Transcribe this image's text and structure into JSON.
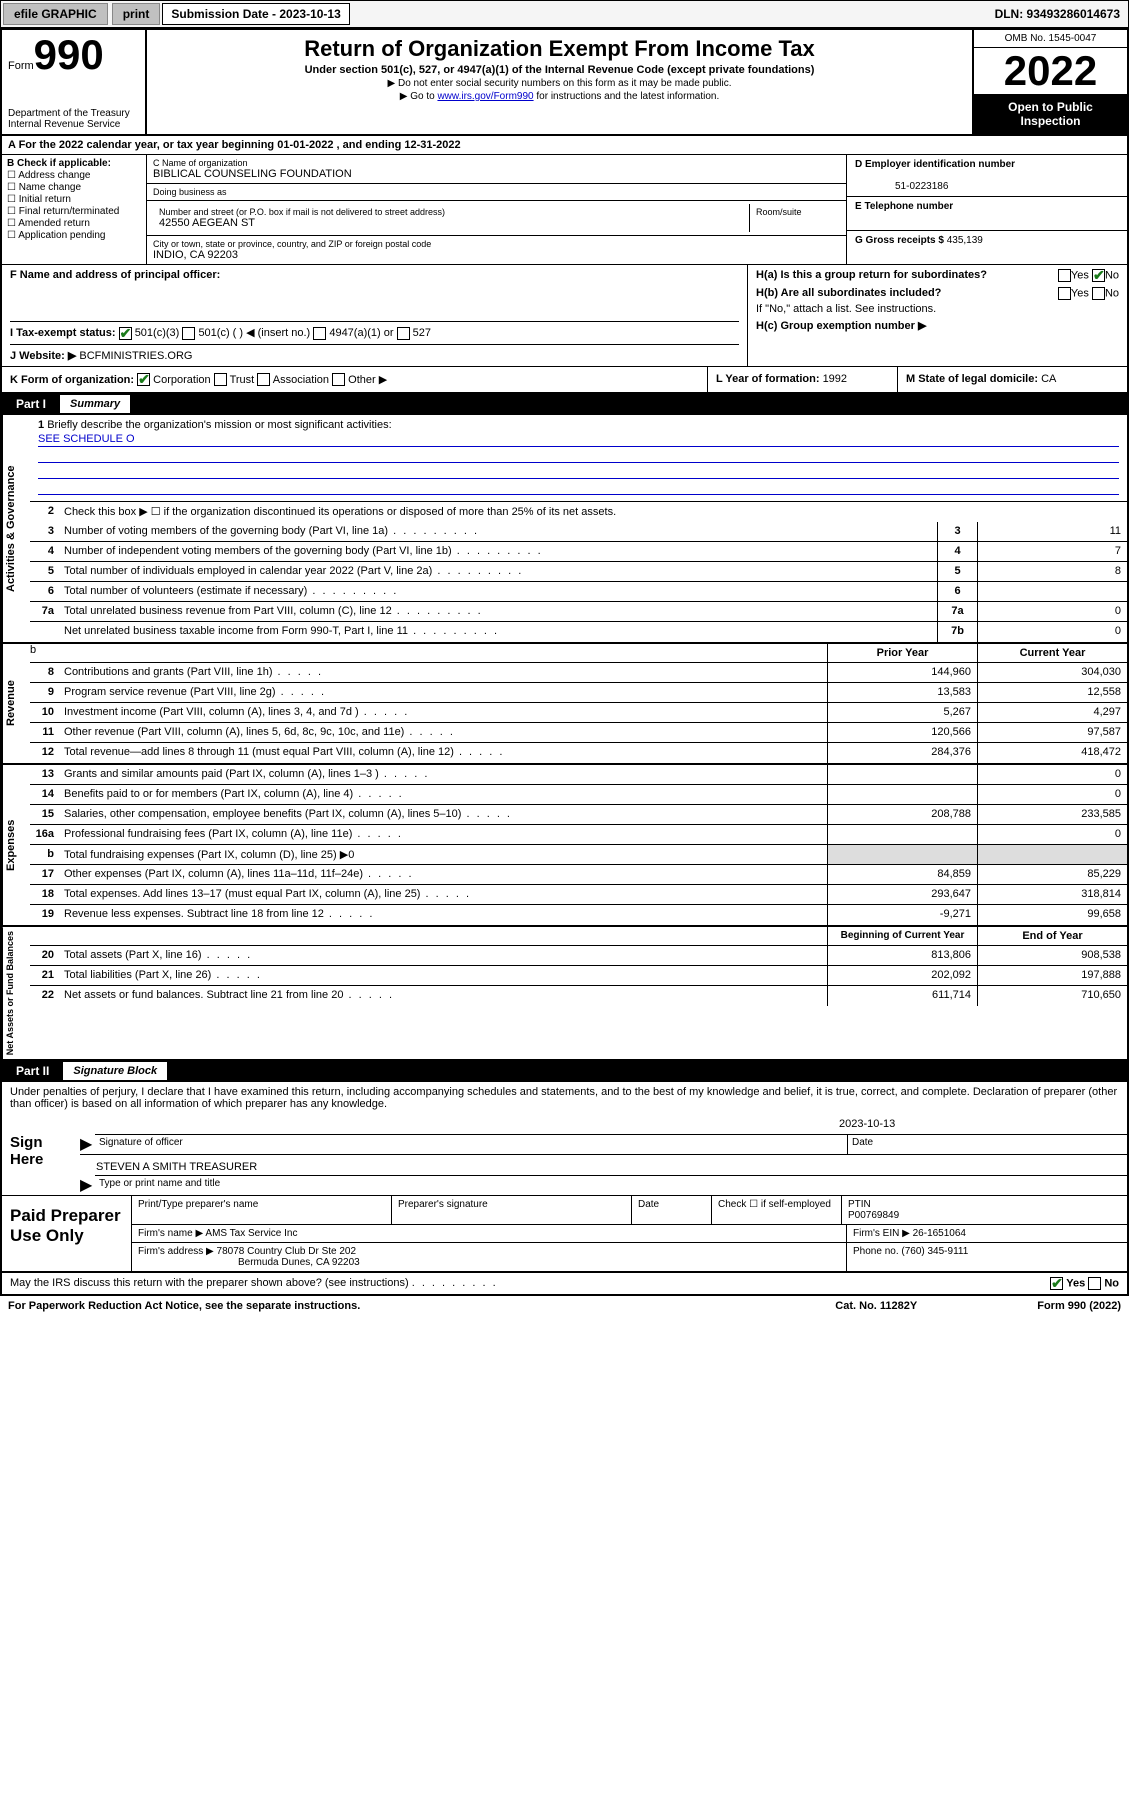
{
  "topbar": {
    "efile": "efile GRAPHIC",
    "print": "print",
    "sub_label": "Submission Date - 2023-10-13",
    "dln": "DLN: 93493286014673"
  },
  "header": {
    "form_prefix": "Form",
    "form_number": "990",
    "dept": "Department of the Treasury\nInternal Revenue Service",
    "title": "Return of Organization Exempt From Income Tax",
    "subtitle": "Under section 501(c), 527, or 4947(a)(1) of the Internal Revenue Code (except private foundations)",
    "note1": "▶ Do not enter social security numbers on this form as it may be made public.",
    "note2_pre": "▶ Go to ",
    "note2_link": "www.irs.gov/Form990",
    "note2_post": " for instructions and the latest information.",
    "omb": "OMB No. 1545-0047",
    "year": "2022",
    "open": "Open to Public Inspection"
  },
  "period": {
    "label_a": "A For the 2022 calendar year, or tax year beginning ",
    "begin": "01-01-2022",
    "mid": " , and ending ",
    "end": "12-31-2022"
  },
  "section_b": {
    "label": "B Check if applicable:",
    "opts": [
      "Address change",
      "Name change",
      "Initial return",
      "Final return/terminated",
      "Amended return",
      "Application pending"
    ]
  },
  "org": {
    "name_label": "C Name of organization",
    "name": "BIBLICAL COUNSELING FOUNDATION",
    "dba_label": "Doing business as",
    "dba": "",
    "street_label": "Number and street (or P.O. box if mail is not delivered to street address)",
    "room_label": "Room/suite",
    "street": "42550 AEGEAN ST",
    "city_label": "City or town, state or province, country, and ZIP or foreign postal code",
    "city": "INDIO, CA  92203"
  },
  "right_info": {
    "ein_label": "D Employer identification number",
    "ein": "51-0223186",
    "phone_label": "E Telephone number",
    "phone": "",
    "gross_label": "G Gross receipts $ ",
    "gross": "435,139"
  },
  "row_f": {
    "label": "F Name and address of principal officer:",
    "val": ""
  },
  "row_h": {
    "ha": "H(a) Is this a group return for subordinates?",
    "ha_yes": "Yes",
    "ha_no": "No",
    "hb": "H(b) Are all subordinates included?",
    "hb_yes": "Yes",
    "hb_no": "No",
    "hb_note": "If \"No,\" attach a list. See instructions.",
    "hc": "H(c) Group exemption number ▶"
  },
  "row_i": {
    "label": "I   Tax-exempt status:",
    "opt1": "501(c)(3)",
    "opt2": "501(c) (  ) ◀ (insert no.)",
    "opt3": "4947(a)(1) or",
    "opt4": "527"
  },
  "row_j": {
    "label": "J   Website: ▶",
    "val": "BCFMINISTRIES.ORG"
  },
  "row_k": {
    "label": "K Form of organization:",
    "corp": "Corporation",
    "trust": "Trust",
    "assoc": "Association",
    "other": "Other ▶",
    "l_label": "L Year of formation: ",
    "l_val": "1992",
    "m_label": "M State of legal domicile: ",
    "m_val": "CA"
  },
  "part1": {
    "label": "Part I",
    "title": "Summary"
  },
  "summary": {
    "line1": "Briefly describe the organization's mission or most significant activities:",
    "line1_val": "SEE SCHEDULE O",
    "line2": "Check this box ▶ ☐ if the organization discontinued its operations or disposed of more than 25% of its net assets.",
    "rows_gov": [
      {
        "n": "3",
        "d": "Number of voting members of the governing body (Part VI, line 1a)",
        "box": "3",
        "v": "11"
      },
      {
        "n": "4",
        "d": "Number of independent voting members of the governing body (Part VI, line 1b)",
        "box": "4",
        "v": "7"
      },
      {
        "n": "5",
        "d": "Total number of individuals employed in calendar year 2022 (Part V, line 2a)",
        "box": "5",
        "v": "8"
      },
      {
        "n": "6",
        "d": "Total number of volunteers (estimate if necessary)",
        "box": "6",
        "v": ""
      },
      {
        "n": "7a",
        "d": "Total unrelated business revenue from Part VIII, column (C), line 12",
        "box": "7a",
        "v": "0"
      },
      {
        "n": "",
        "d": "Net unrelated business taxable income from Form 990-T, Part I, line 11",
        "box": "7b",
        "v": "0"
      }
    ],
    "prior_label": "Prior Year",
    "current_label": "Current Year",
    "rows_rev": [
      {
        "n": "8",
        "d": "Contributions and grants (Part VIII, line 1h)",
        "p": "144,960",
        "c": "304,030"
      },
      {
        "n": "9",
        "d": "Program service revenue (Part VIII, line 2g)",
        "p": "13,583",
        "c": "12,558"
      },
      {
        "n": "10",
        "d": "Investment income (Part VIII, column (A), lines 3, 4, and 7d )",
        "p": "5,267",
        "c": "4,297"
      },
      {
        "n": "11",
        "d": "Other revenue (Part VIII, column (A), lines 5, 6d, 8c, 9c, 10c, and 11e)",
        "p": "120,566",
        "c": "97,587"
      },
      {
        "n": "12",
        "d": "Total revenue—add lines 8 through 11 (must equal Part VIII, column (A), line 12)",
        "p": "284,376",
        "c": "418,472"
      }
    ],
    "rows_exp": [
      {
        "n": "13",
        "d": "Grants and similar amounts paid (Part IX, column (A), lines 1–3 )",
        "p": "",
        "c": "0"
      },
      {
        "n": "14",
        "d": "Benefits paid to or for members (Part IX, column (A), line 4)",
        "p": "",
        "c": "0"
      },
      {
        "n": "15",
        "d": "Salaries, other compensation, employee benefits (Part IX, column (A), lines 5–10)",
        "p": "208,788",
        "c": "233,585"
      },
      {
        "n": "16a",
        "d": "Professional fundraising fees (Part IX, column (A), line 11e)",
        "p": "",
        "c": "0"
      },
      {
        "n": "b",
        "d": "Total fundraising expenses (Part IX, column (D), line 25) ▶0",
        "p": "",
        "c": "",
        "nocols": true
      },
      {
        "n": "17",
        "d": "Other expenses (Part IX, column (A), lines 11a–11d, 11f–24e)",
        "p": "84,859",
        "c": "85,229"
      },
      {
        "n": "18",
        "d": "Total expenses. Add lines 13–17 (must equal Part IX, column (A), line 25)",
        "p": "293,647",
        "c": "318,814"
      },
      {
        "n": "19",
        "d": "Revenue less expenses. Subtract line 18 from line 12",
        "p": "-9,271",
        "c": "99,658"
      }
    ],
    "begin_label": "Beginning of Current Year",
    "end_label": "End of Year",
    "rows_net": [
      {
        "n": "20",
        "d": "Total assets (Part X, line 16)",
        "p": "813,806",
        "c": "908,538"
      },
      {
        "n": "21",
        "d": "Total liabilities (Part X, line 26)",
        "p": "202,092",
        "c": "197,888"
      },
      {
        "n": "22",
        "d": "Net assets or fund balances. Subtract line 21 from line 20",
        "p": "611,714",
        "c": "710,650"
      }
    ],
    "vtabs": {
      "gov": "Activities & Governance",
      "rev": "Revenue",
      "exp": "Expenses",
      "net": "Net Assets or Fund Balances"
    }
  },
  "part2": {
    "label": "Part II",
    "title": "Signature Block",
    "decl": "Under penalties of perjury, I declare that I have examined this return, including accompanying schedules and statements, and to the best of my knowledge and belief, it is true, correct, and complete. Declaration of preparer (other than officer) is based on all information of which preparer has any knowledge."
  },
  "sign": {
    "here": "Sign Here",
    "sig_label": "Signature of officer",
    "date_label": "Date",
    "date_val": "2023-10-13",
    "name_label": "Type or print name and title",
    "name_val": "STEVEN A SMITH TREASURER"
  },
  "paid": {
    "label": "Paid Preparer Use Only",
    "h1": "Print/Type preparer's name",
    "h2": "Preparer's signature",
    "h3": "Date",
    "h4_pre": "Check ☐ if self-employed",
    "h5": "PTIN",
    "ptin": "P00769849",
    "firm_name_label": "Firm's name    ▶",
    "firm_name": "AMS Tax Service Inc",
    "firm_ein_label": "Firm's EIN ▶",
    "firm_ein": "26-1651064",
    "firm_addr_label": "Firm's address ▶",
    "firm_addr1": "78078 Country Club Dr Ste 202",
    "firm_addr2": "Bermuda Dunes, CA  92203",
    "phone_label": "Phone no. ",
    "phone": "(760) 345-9111"
  },
  "footer": {
    "q": "May the IRS discuss this return with the preparer shown above? (see instructions)",
    "yes": "Yes",
    "no": "No",
    "pra": "For Paperwork Reduction Act Notice, see the separate instructions.",
    "cat": "Cat. No. 11282Y",
    "form": "Form 990 (2022)"
  }
}
